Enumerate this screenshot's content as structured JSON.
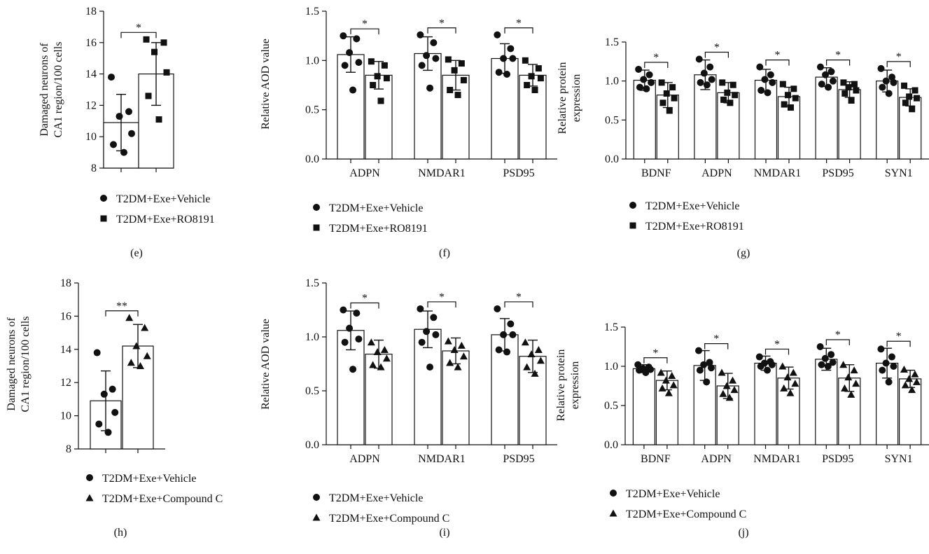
{
  "legend_labels": {
    "vehicle": "T2DM+Exe+Vehicle",
    "ro8191": "T2DM+Exe+RO8191",
    "compoundc": "T2DM+Exe+Compound C"
  },
  "chart_data": [
    {
      "panel": "(e)",
      "type": "bar",
      "ylabel": [
        "Damaged neurons of",
        "CA1 region/100 cells"
      ],
      "ylim": [
        8,
        18
      ],
      "yticks": [
        "8",
        "10",
        "12",
        "14",
        "16",
        "18"
      ],
      "categories": [
        ""
      ],
      "legend": [
        "vehicle",
        "ro8191"
      ],
      "series": [
        {
          "name": "T2DM+Exe+Vehicle",
          "marker": "circle",
          "means": [
            10.9
          ],
          "sd": [
            1.8
          ],
          "points": [
            [
              13.8,
              11.6,
              11.3,
              10.2,
              9.5,
              9.0
            ]
          ]
        },
        {
          "name": "T2DM+Exe+RO8191",
          "marker": "square",
          "means": [
            14.0
          ],
          "sd": [
            2.0
          ],
          "points": [
            [
              16.2,
              16.0,
              15.4,
              14.1,
              12.6,
              11.1
            ]
          ]
        }
      ],
      "significance": [
        "*"
      ]
    },
    {
      "panel": "(f)",
      "type": "bar",
      "ylabel": [
        "Relative AOD value"
      ],
      "ylim": [
        0,
        1.5
      ],
      "yticks": [
        "0.0",
        "0.5",
        "1.0",
        "1.5"
      ],
      "categories": [
        "ADPN",
        "NMDAR1",
        "PSD95"
      ],
      "legend": [
        "vehicle",
        "ro8191"
      ],
      "series": [
        {
          "name": "T2DM+Exe+Vehicle",
          "marker": "circle",
          "means": [
            1.06,
            1.07,
            1.02
          ],
          "sd": [
            0.18,
            0.17,
            0.15
          ],
          "points": [
            [
              1.25,
              1.22,
              1.08,
              0.98,
              0.95,
              0.7
            ],
            [
              1.26,
              1.18,
              1.05,
              1.02,
              0.95,
              0.72
            ],
            [
              1.26,
              1.12,
              1.02,
              1.02,
              0.88,
              0.86
            ]
          ]
        },
        {
          "name": "T2DM+Exe+RO8191",
          "marker": "square",
          "means": [
            0.85,
            0.85,
            0.85
          ],
          "sd": [
            0.14,
            0.15,
            0.11
          ],
          "points": [
            [
              0.99,
              0.95,
              0.84,
              0.82,
              0.75,
              0.59
            ],
            [
              1.01,
              0.97,
              0.9,
              0.8,
              0.7,
              0.65
            ],
            [
              1.0,
              0.92,
              0.84,
              0.82,
              0.75,
              0.7
            ]
          ]
        }
      ],
      "significance": [
        "*",
        "*",
        "*"
      ]
    },
    {
      "panel": "(g)",
      "type": "bar",
      "ylabel": [
        "Relative protein",
        "expression"
      ],
      "ylim": [
        0,
        1.5
      ],
      "yticks": [
        "0.0",
        "0.5",
        "1.0",
        "1.5"
      ],
      "categories": [
        "BDNF",
        "ADPN",
        "NMDAR1",
        "PSD95",
        "SYN1"
      ],
      "legend": [
        "vehicle",
        "ro8191"
      ],
      "series": [
        {
          "name": "T2DM+Exe+Vehicle",
          "marker": "circle",
          "means": [
            1.01,
            1.08,
            1.01,
            1.05,
            1.0
          ],
          "sd": [
            0.13,
            0.19,
            0.14,
            0.12,
            0.14
          ],
          "points": [
            [
              1.15,
              1.08,
              1.02,
              0.98,
              0.92,
              0.9
            ],
            [
              1.28,
              1.18,
              1.1,
              1.02,
              0.98,
              0.95
            ],
            [
              1.18,
              1.08,
              1.02,
              0.98,
              0.88,
              0.85
            ],
            [
              1.18,
              1.12,
              1.08,
              1.0,
              0.96,
              0.92
            ],
            [
              1.16,
              1.05,
              1.0,
              0.98,
              0.92,
              0.84
            ]
          ]
        },
        {
          "name": "T2DM+Exe+RO8191",
          "marker": "square",
          "means": [
            0.82,
            0.85,
            0.8,
            0.89,
            0.79
          ],
          "sd": [
            0.16,
            0.13,
            0.12,
            0.1,
            0.11
          ],
          "points": [
            [
              0.98,
              0.92,
              0.84,
              0.78,
              0.72,
              0.62
            ],
            [
              0.98,
              0.95,
              0.85,
              0.82,
              0.76,
              0.72
            ],
            [
              0.96,
              0.9,
              0.82,
              0.78,
              0.7,
              0.66
            ],
            [
              0.98,
              0.96,
              0.92,
              0.88,
              0.84,
              0.75
            ],
            [
              0.94,
              0.88,
              0.8,
              0.78,
              0.72,
              0.64
            ]
          ]
        }
      ],
      "significance": [
        "*",
        "*",
        "*",
        "*",
        "*"
      ]
    },
    {
      "panel": "(h)",
      "type": "bar",
      "ylabel": [
        "Damaged neurons of",
        "CA1 region/100 cells"
      ],
      "ylim": [
        8,
        18
      ],
      "yticks": [
        "8",
        "10",
        "12",
        "14",
        "16",
        "18"
      ],
      "categories": [
        ""
      ],
      "legend": [
        "vehicle",
        "compoundc"
      ],
      "series": [
        {
          "name": "T2DM+Exe+Vehicle",
          "marker": "circle",
          "means": [
            10.9
          ],
          "sd": [
            1.8
          ],
          "points": [
            [
              13.8,
              11.6,
              11.3,
              10.2,
              9.5,
              9.0
            ]
          ]
        },
        {
          "name": "T2DM+Exe+Compound C",
          "marker": "triangle",
          "means": [
            14.2
          ],
          "sd": [
            1.3
          ],
          "points": [
            [
              15.9,
              15.3,
              14.2,
              13.6,
              13.2,
              13.0
            ]
          ]
        }
      ],
      "significance": [
        "**"
      ]
    },
    {
      "panel": "(i)",
      "type": "bar",
      "ylabel": [
        "Relative AOD value"
      ],
      "ylim": [
        0,
        1.5
      ],
      "yticks": [
        "0.0",
        "0.5",
        "1.0",
        "1.5"
      ],
      "categories": [
        "ADPN",
        "NMDAR1",
        "PSD95"
      ],
      "legend": [
        "vehicle",
        "compoundc"
      ],
      "series": [
        {
          "name": "T2DM+Exe+Vehicle",
          "marker": "circle",
          "means": [
            1.06,
            1.07,
            1.02
          ],
          "sd": [
            0.18,
            0.17,
            0.15
          ],
          "points": [
            [
              1.25,
              1.22,
              1.08,
              0.98,
              0.95,
              0.7
            ],
            [
              1.26,
              1.18,
              1.05,
              1.02,
              0.95,
              0.72
            ],
            [
              1.26,
              1.12,
              1.02,
              1.02,
              0.88,
              0.86
            ]
          ]
        },
        {
          "name": "T2DM+Exe+Compound C",
          "marker": "triangle",
          "means": [
            0.84,
            0.87,
            0.82
          ],
          "sd": [
            0.13,
            0.12,
            0.15
          ],
          "points": [
            [
              0.95,
              0.88,
              0.86,
              0.8,
              0.74,
              0.72
            ],
            [
              0.96,
              0.92,
              0.88,
              0.82,
              0.76,
              0.72
            ],
            [
              0.95,
              0.88,
              0.84,
              0.78,
              0.72,
              0.66
            ]
          ]
        }
      ],
      "significance": [
        "*",
        "*",
        "*"
      ]
    },
    {
      "panel": "(j)",
      "type": "bar",
      "ylabel": [
        "Relative protein",
        "expression"
      ],
      "ylim": [
        0,
        1.5
      ],
      "yticks": [
        "0.0",
        "0.5",
        "1.0",
        "1.5"
      ],
      "categories": [
        "BDNF",
        "ADPN",
        "NMDAR1",
        "PSD95",
        "SYN1"
      ],
      "legend": [
        "vehicle",
        "compoundc"
      ],
      "series": [
        {
          "name": "T2DM+Exe+Vehicle",
          "marker": "circle",
          "means": [
            0.97,
            1.01,
            1.04,
            1.09,
            1.04
          ],
          "sd": [
            0.05,
            0.19,
            0.09,
            0.14,
            0.19
          ],
          "points": [
            [
              1.02,
              0.99,
              0.97,
              0.96,
              0.95,
              0.92
            ],
            [
              1.2,
              1.05,
              1.02,
              0.98,
              0.95,
              0.8
            ],
            [
              1.12,
              1.06,
              1.04,
              1.02,
              1.0,
              0.95
            ],
            [
              1.25,
              1.15,
              1.1,
              1.05,
              1.02,
              1.0
            ],
            [
              1.22,
              1.12,
              1.04,
              1.0,
              0.95,
              0.8
            ]
          ]
        },
        {
          "name": "T2DM+Exe+Compound C",
          "marker": "triangle",
          "means": [
            0.82,
            0.75,
            0.85,
            0.85,
            0.84
          ],
          "sd": [
            0.12,
            0.16,
            0.14,
            0.17,
            0.11
          ],
          "points": [
            [
              0.92,
              0.88,
              0.82,
              0.76,
              0.72,
              0.66
            ],
            [
              0.92,
              0.82,
              0.75,
              0.7,
              0.65,
              0.6
            ],
            [
              1.0,
              0.92,
              0.86,
              0.78,
              0.72,
              0.66
            ],
            [
              1.02,
              0.95,
              0.86,
              0.78,
              0.72,
              0.64
            ],
            [
              0.96,
              0.9,
              0.84,
              0.8,
              0.76,
              0.7
            ]
          ]
        }
      ],
      "significance": [
        "*",
        "*",
        "*",
        "*",
        "*"
      ]
    }
  ]
}
